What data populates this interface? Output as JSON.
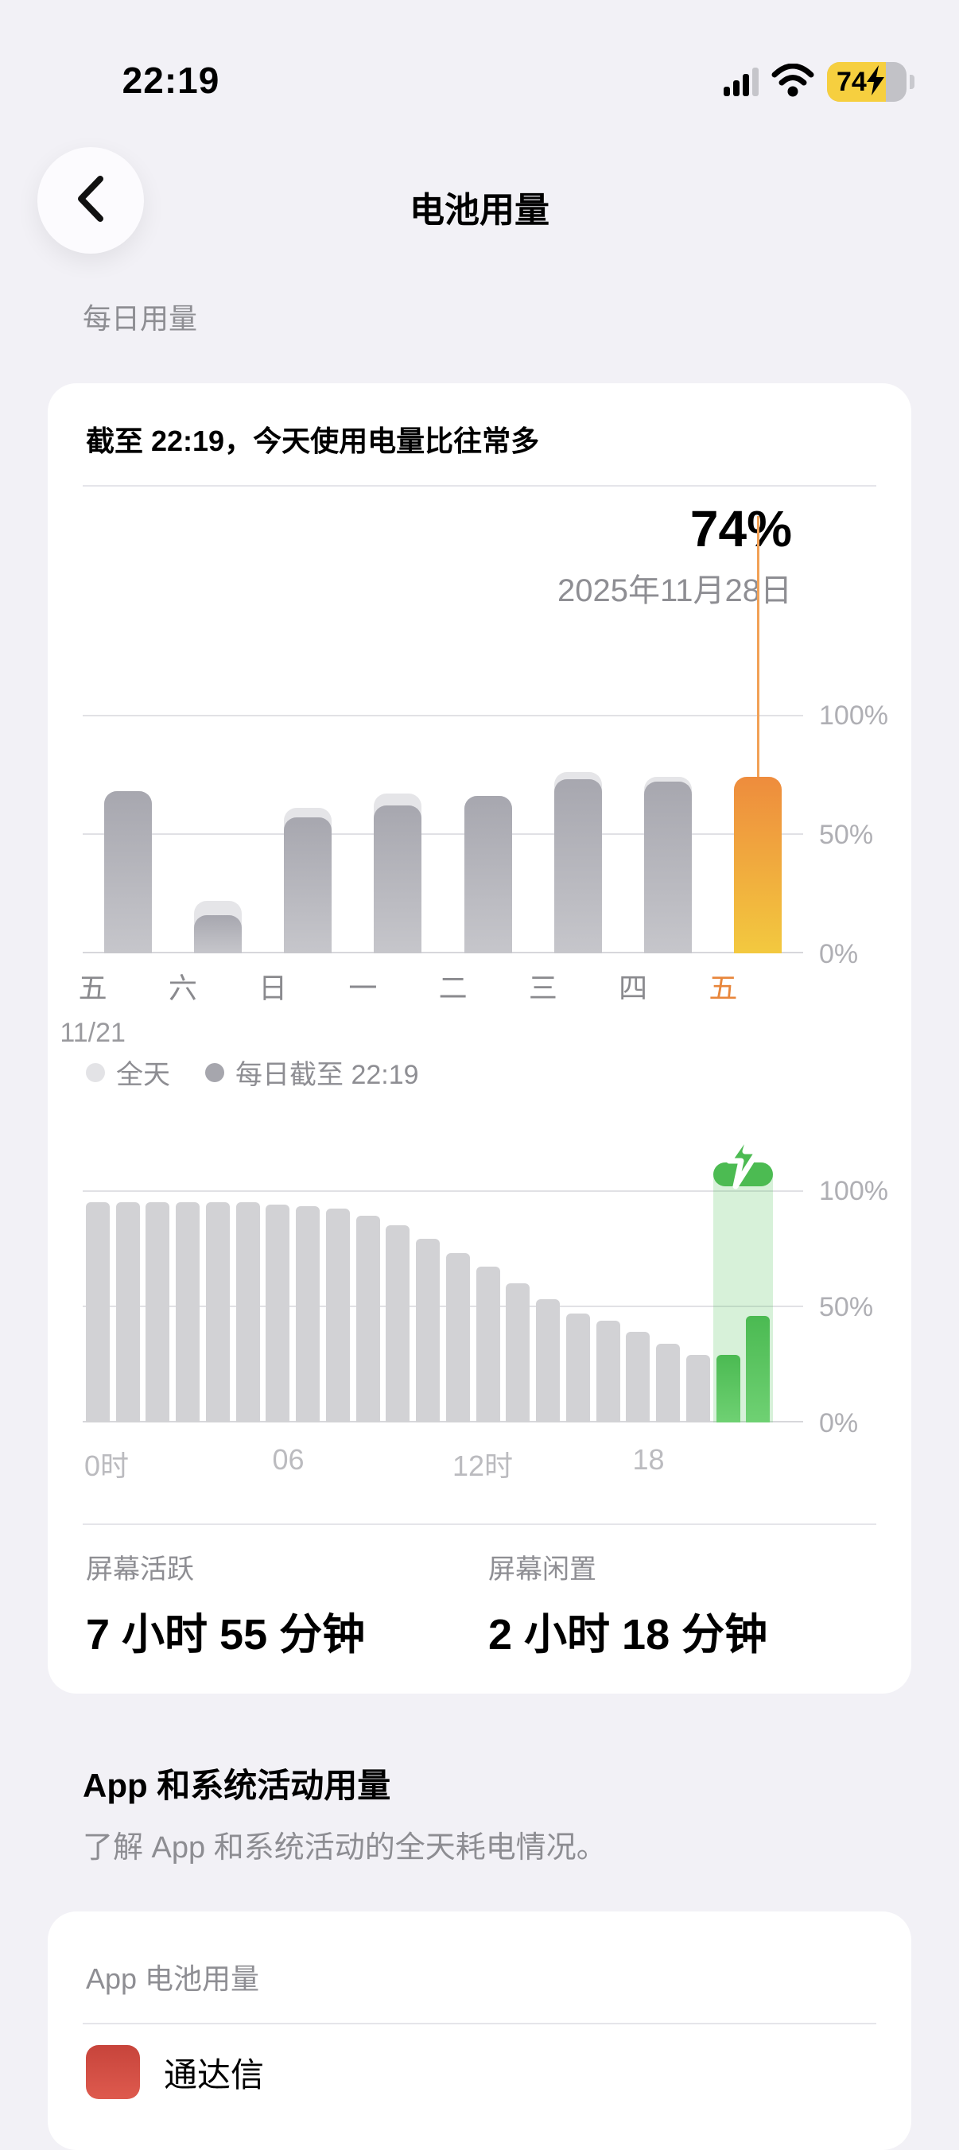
{
  "status_bar": {
    "time": "22:19",
    "battery_percent": "74",
    "icons": [
      "cellular-signal-icon",
      "wifi-icon",
      "battery-charging-icon"
    ]
  },
  "nav": {
    "title": "电池用量"
  },
  "daily_section_label": "每日用量",
  "usage_card": {
    "headline": "截至 22:19，今天使用电量比往常多",
    "callout": {
      "percent": "74%",
      "date": "2025年11月28日"
    },
    "legend": [
      {
        "label": "全天",
        "color": "#E3E3E6"
      },
      {
        "label": "每日截至 22:19",
        "color": "#A6A6AD"
      }
    ],
    "stats": [
      {
        "label": "屏幕活跃",
        "value": "7 小时 55 分钟"
      },
      {
        "label": "屏幕闲置",
        "value": "2 小时 18 分钟"
      }
    ]
  },
  "chart_data": [
    {
      "type": "bar",
      "title": "每周电池用量（每日截至 22:19 与全天对比）",
      "categories": [
        "五",
        "六",
        "日",
        "一",
        "二",
        "三",
        "四",
        "五"
      ],
      "first_category_sublabel": "11/21",
      "series": [
        {
          "name": "全天",
          "values": [
            68,
            22,
            61,
            67,
            66,
            76,
            74,
            74
          ]
        },
        {
          "name": "每日截至 22:19",
          "values": [
            68,
            16,
            57,
            62,
            66,
            73,
            72,
            74
          ]
        }
      ],
      "selected_index": 7,
      "selected_value": 74,
      "selected_label": "74%",
      "selected_date": "2025年11月28日",
      "yticks": [
        "100%",
        "50%",
        "0%"
      ],
      "ylim": [
        0,
        100
      ],
      "legend_position": "bottom-left",
      "grid": true,
      "accent_color": "#E8863B"
    },
    {
      "type": "bar",
      "title": "今日电池电量（按小时）",
      "x_tick_labels": [
        "0时",
        "06",
        "12时",
        "18"
      ],
      "x_tick_slots": [
        0,
        6,
        12,
        18
      ],
      "slots": 24,
      "values": [
        95,
        95,
        95,
        95,
        95,
        95,
        94,
        93,
        92,
        89,
        85,
        79,
        73,
        67,
        60,
        53,
        47,
        44,
        39,
        34,
        29,
        29,
        46
      ],
      "charging_slots": [
        21,
        22
      ],
      "charging_envelope_top": 112,
      "yticks": [
        "100%",
        "50%",
        "0%"
      ],
      "ylim": [
        0,
        100
      ],
      "grid": true,
      "charging_color": "#4CBB52"
    }
  ],
  "apps_section": {
    "heading": "App 和系统活动用量",
    "subtitle": "了解 App 和系统活动的全天耗电情况。",
    "card_label": "App 电池用量",
    "rows": [
      {
        "app": "通达信"
      }
    ]
  },
  "colors": {
    "accent_orange": "#E8863B",
    "charging_green": "#4CBB52",
    "page_bg": "#F2F1F6",
    "secondary_text": "#8E8E93"
  }
}
